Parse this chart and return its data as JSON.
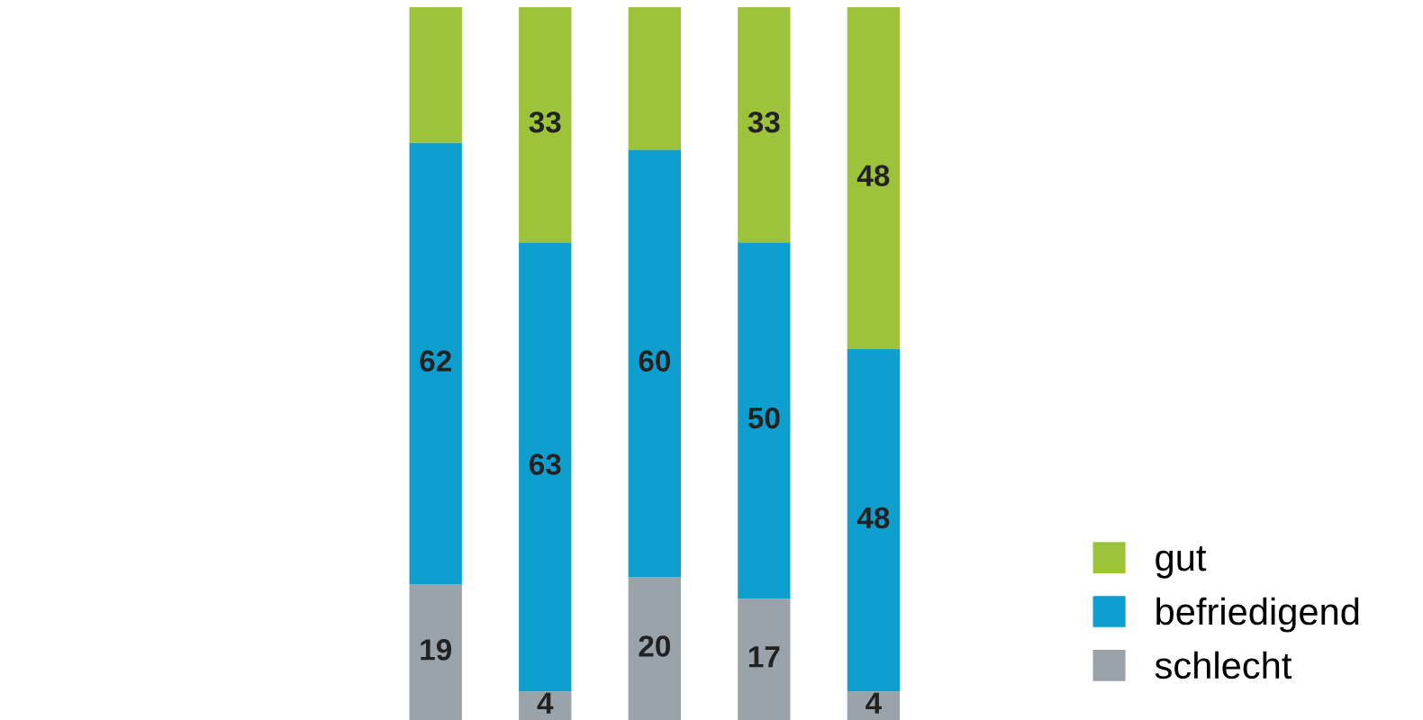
{
  "chart_data": {
    "type": "bar",
    "stacked": true,
    "categories": [
      null,
      null,
      null,
      null,
      null
    ],
    "series": [
      {
        "name": "schlecht",
        "color": "#9aa3aa",
        "values": [
          19,
          4,
          20,
          17,
          4
        ],
        "value_labels": [
          "19",
          "4",
          "20",
          "17",
          "4"
        ]
      },
      {
        "name": "befriedigend",
        "color": "#0f9fcf",
        "values": [
          62,
          63,
          60,
          50,
          48
        ],
        "value_labels": [
          "62",
          "63",
          "60",
          "50",
          "48"
        ]
      },
      {
        "name": "gut",
        "color": "#9dc33b",
        "values": [
          19,
          33,
          20,
          33,
          48
        ],
        "value_labels": [
          null,
          "33",
          null,
          "33",
          "48"
        ]
      }
    ],
    "legend": "bottom right",
    "grid": false
  }
}
